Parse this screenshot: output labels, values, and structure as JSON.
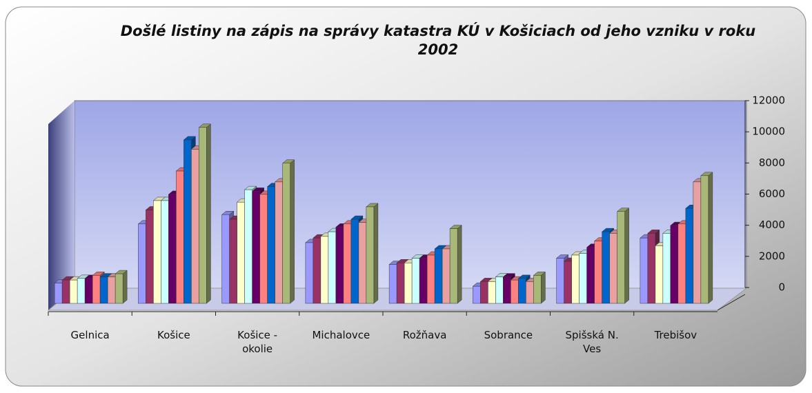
{
  "chart_data": {
    "type": "bar3d",
    "title": "Došlé listiny na zápis na správy katastra KÚ v Košiciach od jeho vzniku  v roku 2002",
    "categories": [
      "Gelnica",
      "Košice",
      "Košice -\nokolie",
      "Michalovce",
      "Rožňava",
      "Sobrance",
      "Spišská N.\nVes",
      "Trebišov"
    ],
    "series": [
      {
        "color": "#9999ff",
        "values": [
          1300,
          5100,
          5700,
          3900,
          2500,
          1100,
          2900,
          4200
        ]
      },
      {
        "color": "#993366",
        "values": [
          1500,
          6000,
          5400,
          4200,
          2600,
          1400,
          2700,
          4500
        ]
      },
      {
        "color": "#ffffcc",
        "values": [
          1500,
          6600,
          6500,
          4300,
          2600,
          1400,
          3100,
          3700
        ]
      },
      {
        "color": "#ccffff",
        "values": [
          1600,
          6600,
          7300,
          4600,
          2900,
          1700,
          3200,
          4500
        ]
      },
      {
        "color": "#660066",
        "values": [
          1600,
          7000,
          7200,
          4900,
          2900,
          1700,
          3600,
          5000
        ]
      },
      {
        "color": "#ff8080",
        "values": [
          1800,
          8500,
          7000,
          5100,
          3100,
          1500,
          4000,
          5100
        ]
      },
      {
        "color": "#0066cc",
        "values": [
          1700,
          10500,
          7500,
          5400,
          3500,
          1600,
          4600,
          6100
        ]
      },
      {
        "color": "#e8a0a0",
        "values": [
          1700,
          9900,
          7800,
          5200,
          3500,
          1400,
          4500,
          7800
        ]
      },
      {
        "color": "#a8b878",
        "values": [
          1900,
          11300,
          9000,
          6200,
          4800,
          1800,
          5900,
          8200
        ]
      }
    ],
    "ylim": [
      0,
      12000
    ],
    "yticks": [
      0,
      2000,
      4000,
      6000,
      8000,
      10000,
      12000
    ]
  }
}
